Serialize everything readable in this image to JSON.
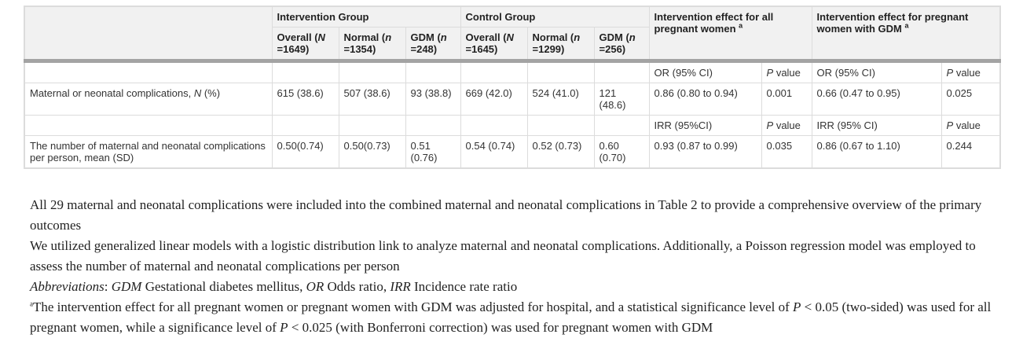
{
  "table": {
    "header_groups": [
      "Intervention Group",
      "Control Group",
      [
        "Intervention effect for all pregnant women ",
        {
          "sup": "a"
        }
      ],
      [
        "Intervention effect for pregnant women with GDM ",
        {
          "sup": "a"
        }
      ]
    ],
    "subheaders": [
      [
        "Overall (",
        {
          "em": "N"
        },
        " =1649)"
      ],
      [
        "Normal (",
        {
          "em": "n"
        },
        " =1354)"
      ],
      [
        "GDM (",
        {
          "em": "n"
        },
        " =248)"
      ],
      [
        "Overall (",
        {
          "em": "N"
        },
        " =1645)"
      ],
      [
        "Normal (",
        {
          "em": "n"
        },
        " =1299)"
      ],
      [
        "GDM (",
        {
          "em": "n"
        },
        " =256)"
      ]
    ],
    "rows": [
      [
        null,
        null,
        null,
        null,
        null,
        null,
        null,
        "OR (95% CI)",
        [
          {
            "em": "P"
          },
          " value"
        ],
        "OR (95% CI)",
        [
          {
            "em": "P"
          },
          " value"
        ]
      ],
      [
        [
          "Maternal or neonatal complications, ",
          {
            "em": "N"
          },
          " (%)"
        ],
        "615 (38.6)",
        "507 (38.6)",
        "93 (38.8)",
        "669 (42.0)",
        "524 (41.0)",
        "121 (48.6)",
        "0.86 (0.80 to 0.94)",
        "0.001",
        "0.66 (0.47 to 0.95)",
        "0.025"
      ],
      [
        null,
        null,
        null,
        null,
        null,
        null,
        null,
        "IRR (95%CI)",
        [
          {
            "em": "P"
          },
          " value"
        ],
        "IRR (95% CI)",
        [
          {
            "em": "P"
          },
          " value"
        ]
      ],
      [
        "The number of maternal and neonatal complications per person, mean (SD)",
        "0.50(0.74)",
        "0.50(0.73)",
        "0.51 (0.76)",
        "0.54 (0.74)",
        "0.52 (0.73)",
        "0.60 (0.70)",
        "0.93 (0.87 to 0.99)",
        "0.035",
        "0.86 (0.67 to 1.10)",
        "0.244"
      ]
    ]
  },
  "notes": [
    "All 29 maternal and neonatal complications were included into the combined maternal and neonatal complications in Table 2 to provide a comprehensive overview of the primary outcomes",
    "We utilized generalized linear models with a logistic distribution link to analyze maternal and neonatal complications. Additionally, a Poisson regression model was employed to assess the number of maternal and neonatal complications per person",
    [
      {
        "em": "Abbreviations"
      },
      ": ",
      {
        "em": "GDM"
      },
      " Gestational diabetes mellitus, ",
      {
        "em": "OR"
      },
      " Odds ratio, ",
      {
        "em": "IRR"
      },
      " Incidence rate ratio"
    ],
    [
      {
        "sup": "a"
      },
      "The intervention effect for all pregnant women or pregnant women with GDM was adjusted for hospital, and a statistical significance level of ",
      {
        "em": "P"
      },
      " < 0.05 (two-sided) was used for all pregnant women, while a significance level of ",
      {
        "em": "P"
      },
      " < 0.025 (with Bonferroni correction) was used for pregnant women with GDM"
    ]
  ]
}
